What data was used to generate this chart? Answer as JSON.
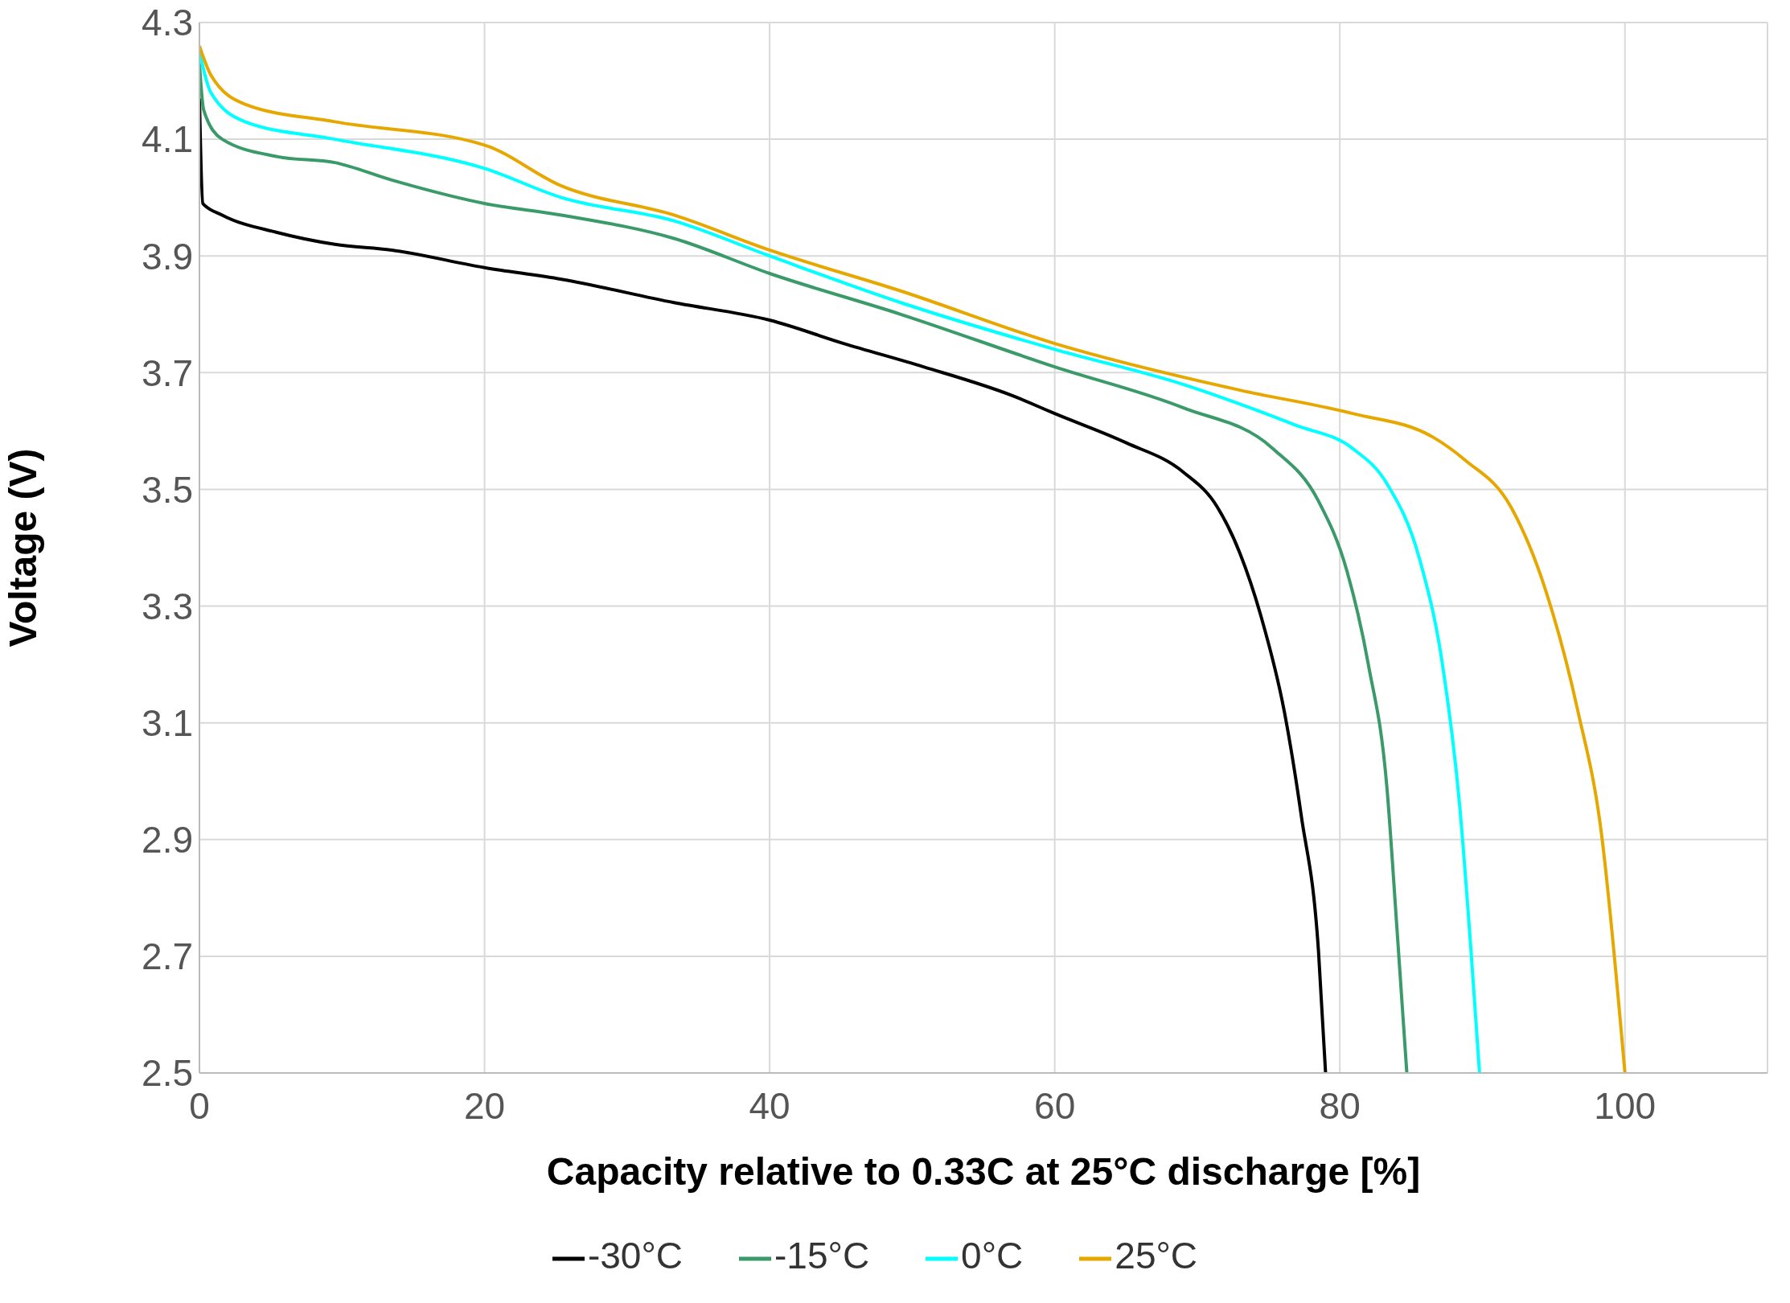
{
  "chart_data": {
    "type": "line",
    "xlabel": "Capacity relative to 0.33C at 25°C discharge [%]",
    "ylabel": "Voltage (V)",
    "xlim": [
      0,
      110
    ],
    "xticks": [
      0,
      20,
      40,
      60,
      80,
      100
    ],
    "ylim": [
      2.5,
      4.3
    ],
    "yticks": [
      2.5,
      2.7,
      2.9,
      3.1,
      3.3,
      3.5,
      3.7,
      3.9,
      4.1,
      4.3
    ],
    "grid": true,
    "legend": "bottom",
    "marker": "none",
    "line_style": "solid",
    "series": [
      {
        "name": "-30°C",
        "color": "#000000",
        "x": [
          0,
          0.24,
          1.6,
          5.5,
          9.5,
          13.5,
          20,
          25.4,
          33.3,
          40,
          45.2,
          50.8,
          57.1,
          60,
          65,
          69,
          71.4,
          73,
          74.5,
          76.1,
          77.3,
          78.5,
          79
        ],
        "values": [
          4.17,
          3.99,
          3.97,
          3.94,
          3.92,
          3.91,
          3.88,
          3.86,
          3.82,
          3.79,
          3.75,
          3.71,
          3.66,
          3.63,
          3.58,
          3.53,
          3.47,
          3.39,
          3.28,
          3.12,
          2.94,
          2.71,
          2.5
        ]
      },
      {
        "name": "-15°C",
        "color": "#3a9a6a",
        "x": [
          0,
          0.3,
          1.6,
          5.5,
          9.5,
          13.5,
          20,
          25.4,
          33.3,
          40,
          49.2,
          60,
          69,
          75.3,
          78.5,
          80.5,
          82,
          83.3,
          84,
          84.7
        ],
        "values": [
          4.23,
          4.15,
          4.1,
          4.07,
          4.06,
          4.03,
          3.99,
          3.97,
          3.93,
          3.87,
          3.8,
          3.71,
          3.64,
          3.57,
          3.48,
          3.36,
          3.2,
          2.99,
          2.75,
          2.5
        ]
      },
      {
        "name": "0°C",
        "color": "#00ffff",
        "x": [
          0,
          0.8,
          3.2,
          9.5,
          20,
          25.4,
          33.3,
          40,
          49.2,
          60,
          69,
          76.9,
          80.9,
          83.3,
          85.6,
          87.2,
          88.4,
          89.2,
          89.8
        ],
        "values": [
          4.25,
          4.18,
          4.13,
          4.1,
          4.05,
          4,
          3.96,
          3.9,
          3.82,
          3.74,
          3.68,
          3.61,
          3.57,
          3.51,
          3.38,
          3.2,
          2.96,
          2.71,
          2.5
        ]
      },
      {
        "name": "25°C",
        "color": "#e6a800",
        "x": [
          0,
          0.8,
          3.2,
          9.5,
          20,
          25.4,
          33.3,
          40,
          49.2,
          60,
          73,
          80.9,
          86.5,
          88.8,
          92,
          94.4,
          96.7,
          98.3,
          100
        ],
        "values": [
          4.26,
          4.21,
          4.16,
          4.13,
          4.09,
          4.02,
          3.97,
          3.91,
          3.84,
          3.75,
          3.67,
          3.63,
          3.59,
          3.55,
          3.47,
          3.33,
          3.12,
          2.92,
          2.5
        ]
      }
    ]
  }
}
